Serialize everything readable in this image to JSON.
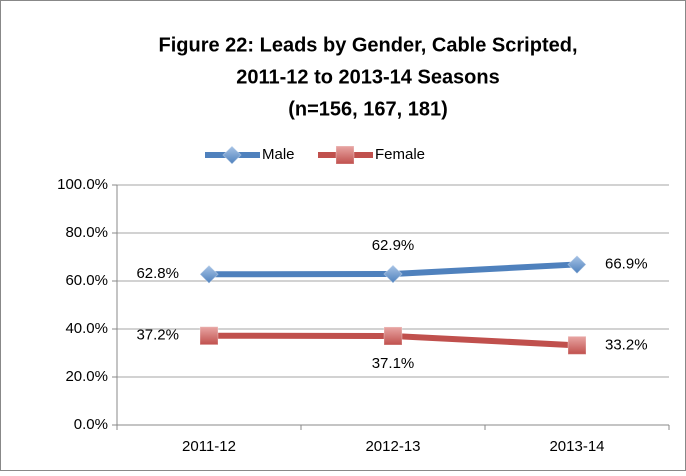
{
  "chart_data": {
    "type": "line",
    "title": [
      "Figure 22:  Leads by Gender, Cable Scripted,",
      "2011-12 to 2013-14 Seasons",
      "(n=156, 167, 181)"
    ],
    "categories": [
      "2011-12",
      "2012-13",
      "2013-14"
    ],
    "series": [
      {
        "name": "Male",
        "color": "#4f81bd",
        "marker": "diamond",
        "values": [
          62.8,
          62.9,
          66.9
        ],
        "value_labels": [
          "62.8%",
          "62.9%",
          "66.9%"
        ]
      },
      {
        "name": "Female",
        "color": "#c0504d",
        "marker": "square",
        "values": [
          37.2,
          37.1,
          33.2
        ],
        "value_labels": [
          "37.2%",
          "37.1%",
          "33.2%"
        ]
      }
    ],
    "ylim": [
      0,
      100
    ],
    "yticks": [
      {
        "value": 0,
        "label": "0.0%"
      },
      {
        "value": 20,
        "label": "20.0%"
      },
      {
        "value": 40,
        "label": "40.0%"
      },
      {
        "value": 60,
        "label": "60.0%"
      },
      {
        "value": 80,
        "label": "80.0%"
      },
      {
        "value": 100,
        "label": "100.0%"
      }
    ],
    "grid": true,
    "legend": "top"
  }
}
